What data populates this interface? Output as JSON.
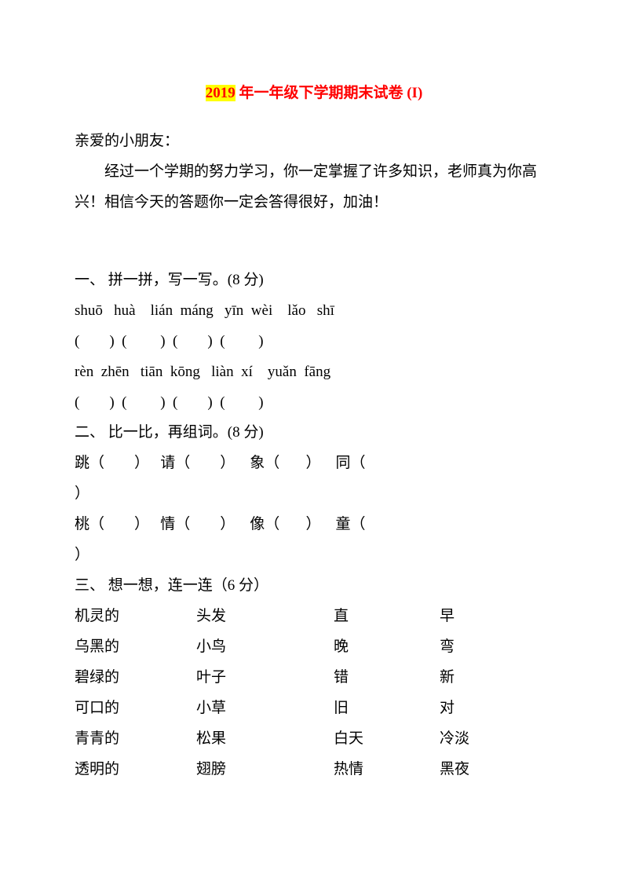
{
  "title": {
    "part1": "2019",
    "part2": " 年一年级下学期期末试卷 (I)"
  },
  "greeting": "亲爱的小朋友：",
  "intro": "经过一个学期的努力学习，你一定掌握了许多知识，老师真为你高兴！相信今天的答题你一定会答得很好，加油！",
  "section1": {
    "heading": "一、 拼一拼，写一写。(8 分)",
    "pinyin_row1": "shuō   huà    lián  máng   yīn  wèi    lǎo   shī",
    "blank_row1": "(        )  (         )  (        )  (         )",
    "pinyin_row2": "rèn  zhēn   tiān  kōng   liàn  xí    yuǎn  fāng",
    "blank_row2": "(        )  (         )  (        )  (         )"
  },
  "section2": {
    "heading": "二、 比一比，再组词。(8 分)",
    "row1_a": "跳（        ）   请（        ）    象（       ）    同（",
    "row1_b": "）",
    "row2_a": "桃（        ）   情（        ）    像（       ）    童（",
    "row2_b": "）"
  },
  "section3": {
    "heading": "三、 想一想，连一连（6 分）",
    "rows": [
      [
        "机灵的",
        "头发",
        "直",
        "早"
      ],
      [
        "乌黑的",
        "小鸟",
        "晚",
        "弯"
      ],
      [
        "碧绿的",
        "叶子",
        "错",
        "新"
      ],
      [
        "可口的",
        "小草",
        "旧",
        "对"
      ],
      [
        "青青的",
        "松果",
        "白天",
        "冷淡"
      ],
      [
        "透明的",
        "翅膀",
        "热情",
        "黑夜"
      ]
    ]
  },
  "styles": {
    "text_color": "#000000",
    "title_color": "#ff0000",
    "highlight_bg": "#ffff00",
    "background_color": "#ffffff",
    "font_size_pt": 14,
    "font_family": "SimSun"
  }
}
